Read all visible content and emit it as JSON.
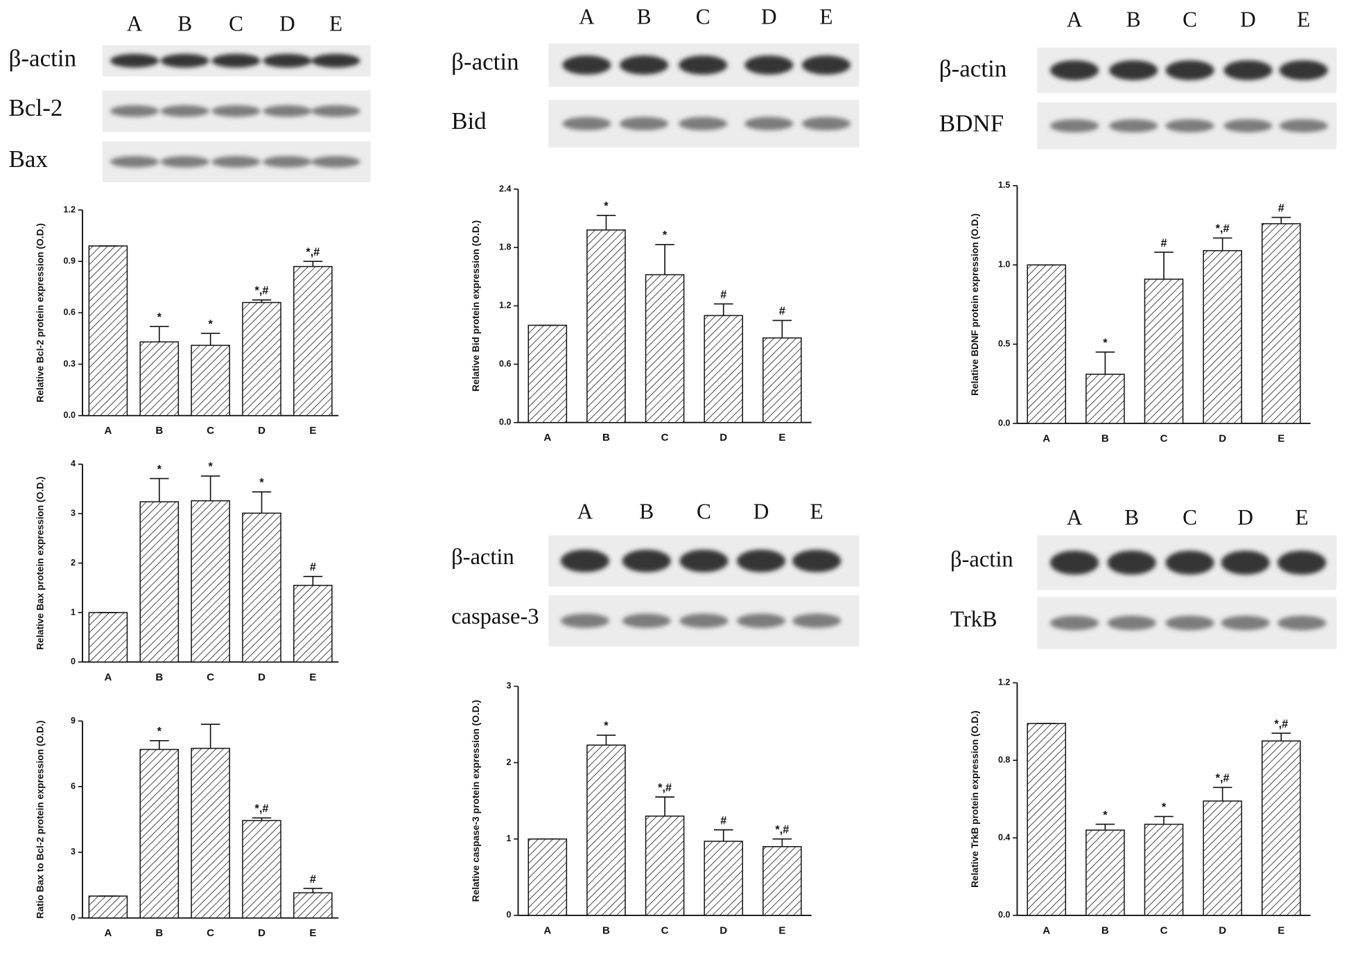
{
  "chart_data": [
    {
      "type": "bar",
      "ylabel": "Relative Bcl-2 protein expression (O.D.)",
      "categories": [
        "A",
        "B",
        "C",
        "D",
        "E"
      ],
      "values": [
        0.99,
        0.43,
        0.41,
        0.66,
        0.87
      ],
      "errors": [
        0,
        0.09,
        0.07,
        0.015,
        0.03
      ],
      "annotations": [
        null,
        "*",
        "*",
        "*,#",
        "*,#"
      ],
      "ylim": [
        0,
        1.2
      ],
      "yticks": [
        {
          "value": 0,
          "label": "0.0"
        },
        0.3,
        0.6,
        0.9,
        1.2
      ]
    },
    {
      "type": "bar",
      "ylabel": "Relative Bax protein expression (O.D.)",
      "categories": [
        "A",
        "B",
        "C",
        "D",
        "E"
      ],
      "values": [
        1.0,
        3.24,
        3.26,
        3.01,
        1.55
      ],
      "errors": [
        0,
        0.47,
        0.5,
        0.43,
        0.18
      ],
      "annotations": [
        null,
        "*",
        "*",
        "*",
        "#"
      ],
      "ylim": [
        0,
        4
      ],
      "yticks": [
        0,
        1,
        2,
        3,
        4
      ]
    },
    {
      "type": "bar",
      "ylabel": "Ratio Bax to Bcl-2 protein expression (O.D.)",
      "categories": [
        "A",
        "B",
        "C",
        "D",
        "E"
      ],
      "values": [
        1.0,
        7.7,
        7.75,
        4.45,
        1.15
      ],
      "errors": [
        0,
        0.4,
        1.1,
        0.12,
        0.2
      ],
      "annotations": [
        null,
        "*",
        null,
        "*,#",
        "#"
      ],
      "ylim": [
        0,
        9
      ],
      "yticks": [
        0,
        3,
        6,
        9
      ]
    },
    {
      "type": "bar",
      "ylabel": "Relative Bid protein expression (O.D.)",
      "categories": [
        "A",
        "B",
        "C",
        "D",
        "E"
      ],
      "values": [
        1.0,
        1.98,
        1.52,
        1.1,
        0.87
      ],
      "errors": [
        0,
        0.15,
        0.31,
        0.12,
        0.18
      ],
      "annotations": [
        null,
        "*",
        "*",
        "#",
        "#"
      ],
      "ylim": [
        0,
        2.4
      ],
      "yticks": [
        {
          "value": 0,
          "label": "0.0"
        },
        0.6,
        1.2,
        1.8,
        2.4
      ]
    },
    {
      "type": "bar",
      "ylabel": "Relative BDNF protein expression (O.D.)",
      "categories": [
        "A",
        "B",
        "C",
        "D",
        "E"
      ],
      "values": [
        1.0,
        0.31,
        0.91,
        1.09,
        1.26
      ],
      "errors": [
        0,
        0.14,
        0.17,
        0.08,
        0.04
      ],
      "annotations": [
        null,
        "*",
        "#",
        "*,#",
        "#"
      ],
      "ylim": [
        0,
        1.5
      ],
      "yticks": [
        {
          "value": 0,
          "label": "0.0"
        },
        0.5,
        {
          "value": 1,
          "label": "1.0"
        },
        1.5
      ]
    },
    {
      "type": "bar",
      "ylabel": "Relative  caspase-3 protein expression (O.D.)",
      "categories": [
        "A",
        "B",
        "C",
        "D",
        "E"
      ],
      "values": [
        1.0,
        2.23,
        1.3,
        0.97,
        0.9
      ],
      "errors": [
        0,
        0.13,
        0.25,
        0.15,
        0.1
      ],
      "annotations": [
        null,
        "*",
        "*,#",
        "#",
        "*,#"
      ],
      "ylim": [
        0,
        3
      ],
      "yticks": [
        0,
        1,
        2,
        3
      ]
    },
    {
      "type": "bar",
      "ylabel": "Relative TrkB protein expression (O.D.)",
      "categories": [
        "A",
        "B",
        "C",
        "D",
        "E"
      ],
      "values": [
        0.99,
        0.44,
        0.47,
        0.59,
        0.9
      ],
      "errors": [
        0,
        0.03,
        0.04,
        0.07,
        0.04
      ],
      "annotations": [
        null,
        "*",
        "*",
        "*,#",
        "*,#"
      ],
      "ylim": [
        0,
        1.2
      ],
      "yticks": [
        {
          "value": 0,
          "label": "0.0"
        },
        0.4,
        0.8,
        1.2
      ]
    }
  ],
  "blots": [
    {
      "lanes": [
        "A",
        "B",
        "C",
        "D",
        "E"
      ],
      "rows": [
        "β-actin",
        "Bcl-2",
        "Bax"
      ]
    },
    {
      "lanes": [
        "A",
        "B",
        "C",
        "D",
        "E"
      ],
      "rows": [
        "β-actin",
        "Bid"
      ]
    },
    {
      "lanes": [
        "A",
        "B",
        "C",
        "D",
        "E"
      ],
      "rows": [
        "β-actin",
        "BDNF"
      ]
    },
    {
      "lanes": [
        "A",
        "B",
        "C",
        "D",
        "E"
      ],
      "rows": [
        "β-actin",
        "caspase-3"
      ]
    },
    {
      "lanes": [
        "A",
        "B",
        "C",
        "D",
        "E"
      ],
      "rows": [
        "β-actin",
        "TrkB"
      ]
    }
  ]
}
